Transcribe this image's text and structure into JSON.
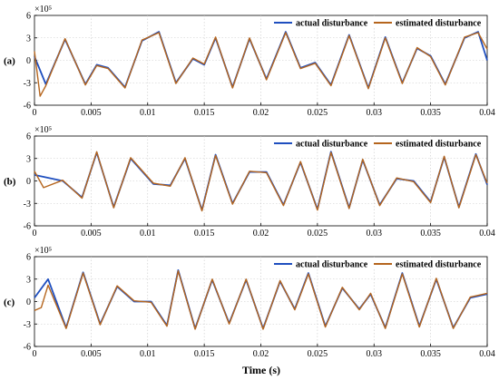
{
  "chart_data": {
    "type": "line",
    "xlabel": "Time (s)",
    "xlim": [
      0,
      0.04
    ],
    "ylim": [
      -6,
      6
    ],
    "y_exponent_label": "×10⁵",
    "xticks": [
      "0",
      "0.005",
      "0.01",
      "0.015",
      "0.02",
      "0.025",
      "0.03",
      "0.035",
      "0.04"
    ],
    "yticks": [
      "-6",
      "-3",
      "0",
      "3",
      "6"
    ],
    "grid": true,
    "legend_position": "top-right",
    "series_colors": {
      "actual": "#1f4fbf",
      "estimated": "#b5651d"
    },
    "panels": [
      {
        "label": "(a)",
        "series": [
          {
            "name": "actual disturbance",
            "x": [
              0,
              0.001,
              0.0027,
              0.0045,
              0.0055,
              0.0065,
              0.008,
              0.0095,
              0.011,
              0.0125,
              0.014,
              0.015,
              0.016,
              0.0175,
              0.019,
              0.0205,
              0.0222,
              0.0235,
              0.0248,
              0.0262,
              0.0278,
              0.0295,
              0.031,
              0.0325,
              0.0338,
              0.035,
              0.0363,
              0.038,
              0.0392,
              0.04
            ],
            "y": [
              0.5,
              -3.2,
              2.8,
              -3.2,
              -0.6,
              -1.0,
              -3.6,
              2.6,
              3.8,
              -3.0,
              0.2,
              -0.6,
              3.0,
              -3.6,
              2.9,
              -2.5,
              3.8,
              -1.0,
              -0.3,
              -3.3,
              3.4,
              -3.7,
              3.1,
              -3.0,
              1.6,
              0.6,
              -3.2,
              3.0,
              3.8,
              0.0
            ]
          },
          {
            "name": "estimated disturbance",
            "x": [
              0,
              0.0005,
              0.001,
              0.0027,
              0.0045,
              0.0055,
              0.0065,
              0.008,
              0.0095,
              0.011,
              0.0125,
              0.014,
              0.015,
              0.016,
              0.0175,
              0.019,
              0.0205,
              0.0222,
              0.0235,
              0.0248,
              0.0262,
              0.0278,
              0.0295,
              0.031,
              0.0325,
              0.0338,
              0.035,
              0.0363,
              0.038,
              0.0392,
              0.04
            ],
            "y": [
              1.2,
              -4.8,
              -3.4,
              2.9,
              -3.3,
              -0.7,
              -1.1,
              -3.7,
              2.7,
              3.7,
              -3.1,
              0.3,
              -0.5,
              3.1,
              -3.7,
              3.0,
              -2.6,
              3.7,
              -1.1,
              -0.4,
              -3.4,
              3.3,
              -3.8,
              3.0,
              -3.1,
              1.7,
              0.5,
              -3.3,
              3.1,
              3.7,
              1.5
            ]
          }
        ]
      },
      {
        "label": "(b)",
        "series": [
          {
            "name": "actual disturbance",
            "x": [
              0,
              0.0025,
              0.0042,
              0.0055,
              0.007,
              0.0085,
              0.0105,
              0.012,
              0.0133,
              0.0148,
              0.016,
              0.0175,
              0.019,
              0.0205,
              0.022,
              0.0235,
              0.025,
              0.0262,
              0.0278,
              0.029,
              0.0305,
              0.032,
              0.0335,
              0.035,
              0.0362,
              0.0375,
              0.039,
              0.04
            ],
            "y": [
              0.8,
              0.0,
              -2.2,
              3.8,
              -3.5,
              3.0,
              -0.4,
              -0.6,
              3.0,
              -3.9,
              3.5,
              -3.0,
              1.2,
              1.2,
              -3.2,
              2.5,
              -3.8,
              3.9,
              -3.6,
              2.8,
              -3.2,
              0.3,
              0.0,
              -2.8,
              3.2,
              -3.5,
              3.6,
              -0.5
            ]
          },
          {
            "name": "estimated disturbance",
            "x": [
              0,
              0.0008,
              0.0025,
              0.0042,
              0.0055,
              0.007,
              0.0085,
              0.0105,
              0.012,
              0.0133,
              0.0148,
              0.016,
              0.0175,
              0.019,
              0.0205,
              0.022,
              0.0235,
              0.025,
              0.0262,
              0.0278,
              0.029,
              0.0305,
              0.032,
              0.0335,
              0.035,
              0.0362,
              0.0375,
              0.039,
              0.04
            ],
            "y": [
              1.3,
              -0.9,
              0.1,
              -2.3,
              3.9,
              -3.6,
              3.1,
              -0.3,
              -0.7,
              3.1,
              -4.0,
              3.4,
              -3.1,
              1.3,
              1.1,
              -3.3,
              2.6,
              -3.9,
              3.8,
              -3.7,
              2.9,
              -3.3,
              0.4,
              -0.1,
              -2.9,
              3.3,
              -3.6,
              3.5,
              -0.3
            ]
          }
        ]
      },
      {
        "label": "(c)",
        "series": [
          {
            "name": "actual disturbance",
            "x": [
              0,
              0.0012,
              0.0028,
              0.0043,
              0.0058,
              0.0073,
              0.0088,
              0.0103,
              0.0117,
              0.0127,
              0.0142,
              0.0157,
              0.0172,
              0.0187,
              0.0202,
              0.0217,
              0.023,
              0.0242,
              0.0257,
              0.0272,
              0.0287,
              0.0297,
              0.031,
              0.0325,
              0.034,
              0.0355,
              0.037,
              0.0385,
              0.04
            ],
            "y": [
              0.5,
              3.0,
              -3.5,
              3.9,
              -3.0,
              2.0,
              0.0,
              0.0,
              -3.2,
              4.2,
              -3.6,
              2.9,
              -2.9,
              2.9,
              -3.6,
              2.7,
              -1.0,
              3.8,
              -3.3,
              1.8,
              -1.0,
              1.0,
              -3.5,
              3.8,
              -3.3,
              3.0,
              -3.5,
              0.5,
              1.0
            ]
          },
          {
            "name": "estimated disturbance",
            "x": [
              0,
              0.0006,
              0.0012,
              0.0028,
              0.0043,
              0.0058,
              0.0073,
              0.0088,
              0.0103,
              0.0117,
              0.0127,
              0.0142,
              0.0157,
              0.0172,
              0.0187,
              0.0202,
              0.0217,
              0.023,
              0.0242,
              0.0257,
              0.0272,
              0.0287,
              0.0297,
              0.031,
              0.0325,
              0.034,
              0.0355,
              0.037,
              0.0385,
              0.04
            ],
            "y": [
              -1.2,
              -0.8,
              2.2,
              -3.6,
              3.8,
              -3.1,
              2.1,
              0.1,
              -0.1,
              -3.3,
              4.1,
              -3.7,
              3.0,
              -3.0,
              3.0,
              -3.7,
              2.8,
              -1.1,
              3.7,
              -3.4,
              1.9,
              -1.1,
              1.1,
              -3.6,
              3.7,
              -3.4,
              3.1,
              -3.6,
              0.6,
              1.1
            ]
          }
        ]
      }
    ]
  }
}
